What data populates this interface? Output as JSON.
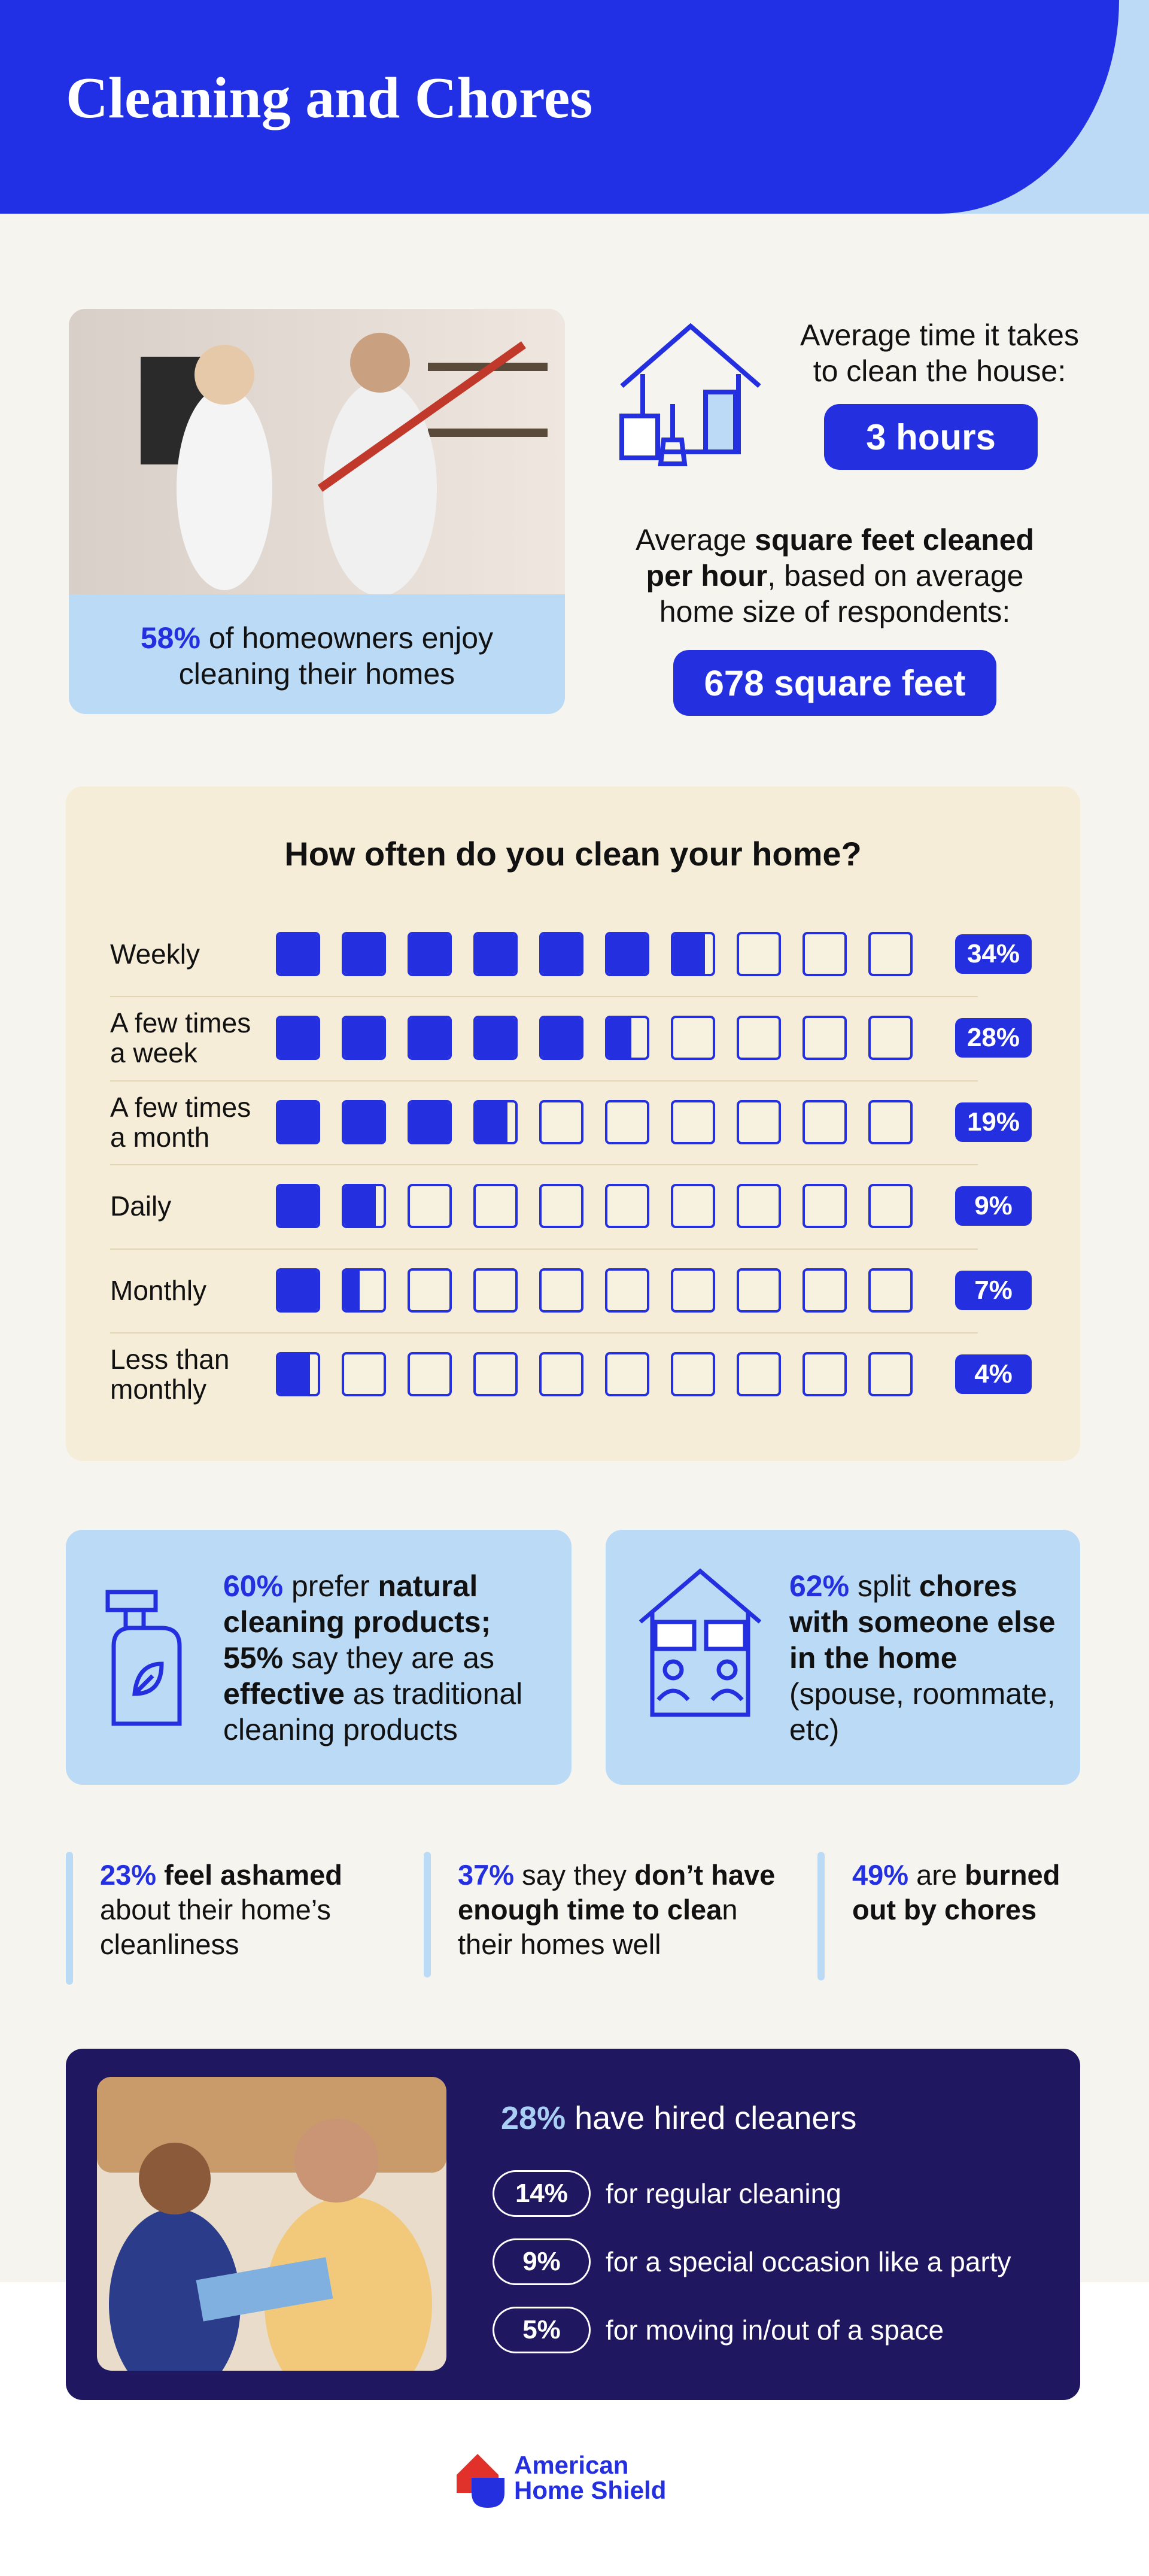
{
  "header": {
    "title": "Cleaning and Chores"
  },
  "enjoy": {
    "parts": [
      "58%",
      "of homeowners enjoy cleaning their homes"
    ]
  },
  "time": {
    "label": "Average time it takes to clean the house:",
    "value": "3 hours"
  },
  "sqft": {
    "parts": [
      "Average",
      "square feet cleaned per hour",
      ", based on average home size of respondents:"
    ],
    "value": "678 square feet"
  },
  "chart_data": {
    "type": "waffle",
    "title": "How often do you clean your home?",
    "categories": [
      "Weekly",
      "A few times a week",
      "A few times a month",
      "Daily",
      "Monthly",
      "Less than monthly"
    ],
    "values": [
      34,
      28,
      19,
      9,
      7,
      4
    ],
    "value_labels": [
      "34%",
      "28%",
      "19%",
      "9%",
      "7%",
      "4%"
    ],
    "xlim": [
      0,
      50
    ],
    "color": "#2430df"
  },
  "natural": {
    "parts": [
      "60%",
      "prefer",
      "natural cleaning products;",
      "55%",
      "say they are as",
      "effective",
      "as traditional cleaning products"
    ]
  },
  "chores": {
    "parts": [
      "62%",
      "split",
      "chores with someone else in the home",
      "(spouse, roommate, etc)"
    ]
  },
  "ashamed": {
    "parts": [
      "23%",
      "feel ashamed",
      "about their home’s cleanliness"
    ]
  },
  "no_time": {
    "parts": [
      "37%",
      "say they",
      "don’t have enough time to clea",
      "n their homes well"
    ]
  },
  "burned": {
    "parts": [
      "49%",
      "are",
      "burned out by chores"
    ]
  },
  "hired": {
    "headline": [
      "28%",
      "have hired cleaners"
    ],
    "items": [
      {
        "pct": "14%",
        "text": "for regular cleaning"
      },
      {
        "pct": "9%",
        "text": "for a special occasion like a party"
      },
      {
        "pct": "5%",
        "text": "for moving in/out of a space"
      }
    ]
  },
  "logo": {
    "lines": [
      "American",
      "Home Shield"
    ]
  }
}
